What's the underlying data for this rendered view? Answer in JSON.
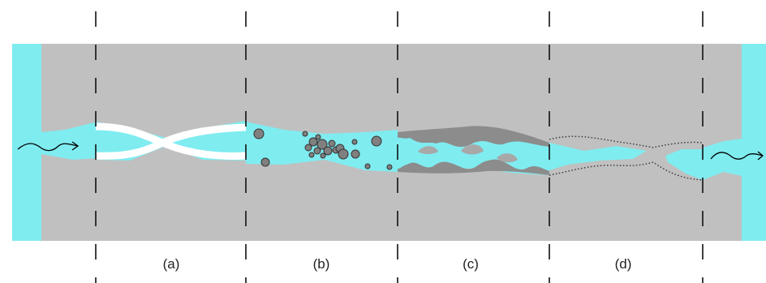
{
  "panels": [
    {
      "label": "(a)"
    },
    {
      "label": "(b)"
    },
    {
      "label": "(c)"
    },
    {
      "label": "(d)"
    }
  ],
  "colors": {
    "rock": "#c0c0c0",
    "fluid": "#7fecf0",
    "bridge": "#ffffff",
    "particle": "#808080",
    "particle_outline": "#333333",
    "deposit": "#8c8c8c",
    "divider": "#111111"
  }
}
